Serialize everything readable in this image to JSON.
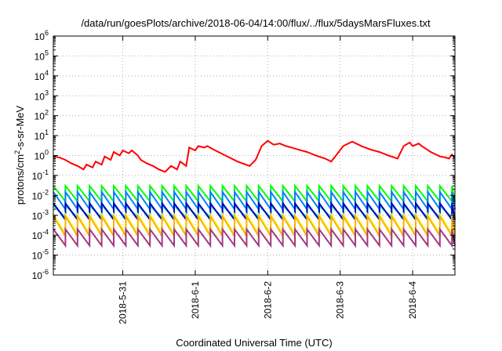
{
  "chart_data": {
    "type": "line",
    "title": "/data/run/goesPlots/archive/2018-06-04/14:00/flux/../flux/5daysMarsFluxes.txt",
    "xlabel": "Coordinated Universal Time (UTC)",
    "ylabel": {
      "base": "protons/cm",
      "sup": "2",
      "rest": "-s-sr-MeV"
    },
    "yscale": "log",
    "ylim": [
      1e-06,
      1000000.0
    ],
    "y_ticks": [
      {
        "base": "10",
        "exp": "6",
        "value": 1000000.0
      },
      {
        "base": "10",
        "exp": "5",
        "value": 100000.0
      },
      {
        "base": "10",
        "exp": "4",
        "value": 10000.0
      },
      {
        "base": "10",
        "exp": "3",
        "value": 1000.0
      },
      {
        "base": "10",
        "exp": "2",
        "value": 100.0
      },
      {
        "base": "10",
        "exp": "1",
        "value": 10.0
      },
      {
        "base": "10",
        "exp": "0",
        "value": 1.0
      },
      {
        "base": "10",
        "exp": "-1",
        "value": 0.1
      },
      {
        "base": "10",
        "exp": "-2",
        "value": 0.01
      },
      {
        "base": "10",
        "exp": "-3",
        "value": 0.001
      },
      {
        "base": "10",
        "exp": "-4",
        "value": 0.0001
      },
      {
        "base": "10",
        "exp": "-5",
        "value": 1e-05
      },
      {
        "base": "10",
        "exp": "-6",
        "value": 1e-06
      }
    ],
    "xlim": [
      "2018-05-30 01:00",
      "2018-06-04 14:00"
    ],
    "x_ticks": [
      {
        "label": "2018-5-31",
        "value": "2018-05-31 00:00"
      },
      {
        "label": "2018-6-1",
        "value": "2018-06-01 00:00"
      },
      {
        "label": "2018-6-2",
        "value": "2018-06-02 00:00"
      },
      {
        "label": "2018-6-3",
        "value": "2018-06-03 00:00"
      },
      {
        "label": "2018-6-4",
        "value": "2018-06-04 00:00"
      }
    ],
    "grid": true,
    "legend": "none",
    "series": [
      {
        "color": "#ff0000",
        "x": [
          "2018-05-30 01:00",
          "2018-05-30 03:00",
          "2018-05-30 05:00",
          "2018-05-30 07:00",
          "2018-05-30 09:00",
          "2018-05-30 11:00",
          "2018-05-30 12:00",
          "2018-05-30 14:00",
          "2018-05-30 15:00",
          "2018-05-30 17:00",
          "2018-05-30 18:00",
          "2018-05-30 20:00",
          "2018-05-30 21:00",
          "2018-05-30 23:00",
          "2018-05-31 00:00",
          "2018-05-31 02:00",
          "2018-05-31 03:00",
          "2018-05-31 05:00",
          "2018-05-31 06:00",
          "2018-05-31 08:00",
          "2018-05-31 10:00",
          "2018-05-31 12:00",
          "2018-05-31 14:00",
          "2018-05-31 16:00",
          "2018-05-31 18:00",
          "2018-05-31 19:00",
          "2018-05-31 21:00",
          "2018-05-31 22:00",
          "2018-06-01 00:00",
          "2018-06-01 01:00",
          "2018-06-01 03:00",
          "2018-06-01 04:00",
          "2018-06-01 06:00",
          "2018-06-01 10:00",
          "2018-06-01 14:00",
          "2018-06-01 18:00",
          "2018-06-01 20:00",
          "2018-06-01 22:00",
          "2018-06-02 00:00",
          "2018-06-02 02:00",
          "2018-06-02 04:00",
          "2018-06-02 06:00",
          "2018-06-02 08:00",
          "2018-06-02 10:00",
          "2018-06-02 13:00",
          "2018-06-02 16:00",
          "2018-06-02 19:00",
          "2018-06-02 21:00",
          "2018-06-02 23:00",
          "2018-06-03 01:00",
          "2018-06-03 04:00",
          "2018-06-03 07:00",
          "2018-06-03 10:00",
          "2018-06-03 13:00",
          "2018-06-03 16:00",
          "2018-06-03 19:00",
          "2018-06-03 21:00",
          "2018-06-03 23:00",
          "2018-06-04 00:00",
          "2018-06-04 02:00",
          "2018-06-04 03:00",
          "2018-06-04 06:00",
          "2018-06-04 09:00",
          "2018-06-04 11:00",
          "2018-06-04 12:00",
          "2018-06-04 13:00",
          "2018-06-04 14:00"
        ],
        "y": [
          0.9,
          0.8,
          0.6,
          0.4,
          0.3,
          0.2,
          0.35,
          0.25,
          0.5,
          0.35,
          0.9,
          0.6,
          1.5,
          1.0,
          1.8,
          1.3,
          1.8,
          1.0,
          0.6,
          0.4,
          0.3,
          0.2,
          0.15,
          0.3,
          0.2,
          0.5,
          0.3,
          2.5,
          1.8,
          3.0,
          2.5,
          3.0,
          2.0,
          1.0,
          0.5,
          0.3,
          0.6,
          3.0,
          5.5,
          3.5,
          4.0,
          3.0,
          2.5,
          2.0,
          1.5,
          1.0,
          0.7,
          0.5,
          1.2,
          3.0,
          5.0,
          3.0,
          2.0,
          1.5,
          1.0,
          0.7,
          3.0,
          4.5,
          3.0,
          4.0,
          3.0,
          1.5,
          0.9,
          0.8,
          0.7,
          1.1,
          0.8
        ]
      },
      {
        "color": "#00ff00",
        "sawtooth": {
          "period_hours": 4,
          "peak": 0.03,
          "trough": 0.005
        }
      },
      {
        "color": "#007fff",
        "sawtooth": {
          "period_hours": 4,
          "peak": 0.015,
          "trough": 0.002
        }
      },
      {
        "color": "#00ffb0",
        "sawtooth": {
          "period_hours": 4,
          "peak": 0.003,
          "trough": 0.0008
        }
      },
      {
        "color": "#0000c0",
        "sawtooth": {
          "period_hours": 4,
          "peak": 0.004,
          "trough": 0.0006
        }
      },
      {
        "color": "#f0ff40",
        "sawtooth": {
          "period_hours": 4,
          "peak": 0.0011,
          "trough": 0.00012
        }
      },
      {
        "color": "#ffb000",
        "sawtooth": {
          "period_hours": 4,
          "peak": 0.0009,
          "trough": 9e-05
        }
      },
      {
        "color": "#a03a80",
        "sawtooth": {
          "period_hours": 4,
          "peak": 0.0002,
          "trough": 3e-05
        }
      }
    ]
  }
}
